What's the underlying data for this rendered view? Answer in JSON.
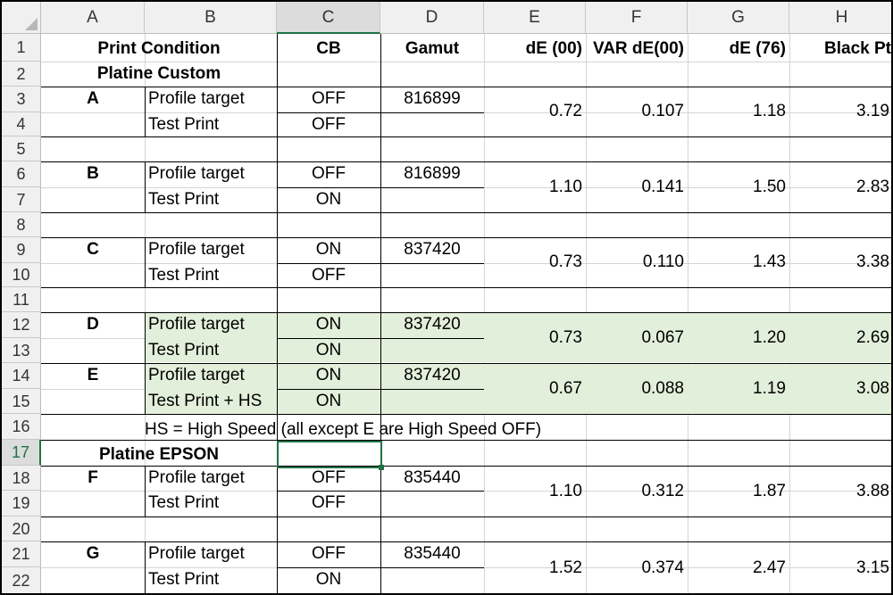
{
  "columns": [
    "A",
    "B",
    "C",
    "D",
    "E",
    "F",
    "G",
    "H"
  ],
  "rows": [
    "1",
    "2",
    "3",
    "4",
    "5",
    "6",
    "7",
    "8",
    "9",
    "10",
    "11",
    "12",
    "13",
    "14",
    "15",
    "16",
    "17",
    "18",
    "19",
    "20",
    "21",
    "22"
  ],
  "header": {
    "print_condition": "Print Condition",
    "cb": "CB",
    "gamut": "Gamut",
    "de00": "dE (00)",
    "var_de00": "VAR dE(00)",
    "de76": "dE (76)",
    "black_pt": "Black Pt"
  },
  "sections": {
    "platine_custom": "Platine Custom",
    "platine_epson": "Platine EPSON"
  },
  "note": "HS = High Speed (all except E are High Speed OFF)",
  "groups": [
    {
      "id": "A",
      "row1_label": "Profile target",
      "row2_label": "Test Print",
      "cb1": "OFF",
      "cb2": "OFF",
      "gamut": "816899",
      "de00": "0.72",
      "var_de00": "0.107",
      "de76": "1.18",
      "black_pt": "3.19"
    },
    {
      "id": "B",
      "row1_label": "Profile target",
      "row2_label": "Test Print",
      "cb1": "OFF",
      "cb2": "ON",
      "gamut": "816899",
      "de00": "1.10",
      "var_de00": "0.141",
      "de76": "1.50",
      "black_pt": "2.83"
    },
    {
      "id": "C",
      "row1_label": "Profile target",
      "row2_label": "Test Print",
      "cb1": "ON",
      "cb2": "OFF",
      "gamut": "837420",
      "de00": "0.73",
      "var_de00": "0.110",
      "de76": "1.43",
      "black_pt": "3.38"
    },
    {
      "id": "D",
      "row1_label": "Profile target",
      "row2_label": "Test Print",
      "cb1": "ON",
      "cb2": "ON",
      "gamut": "837420",
      "de00": "0.73",
      "var_de00": "0.067",
      "de76": "1.20",
      "black_pt": "2.69"
    },
    {
      "id": "E",
      "row1_label": "Profile target",
      "row2_label": "Test Print + HS",
      "cb1": "ON",
      "cb2": "ON",
      "gamut": "837420",
      "de00": "0.67",
      "var_de00": "0.088",
      "de76": "1.19",
      "black_pt": "3.08"
    },
    {
      "id": "F",
      "row1_label": "Profile target",
      "row2_label": "Test Print",
      "cb1": "OFF",
      "cb2": "OFF",
      "gamut": "835440",
      "de00": "1.10",
      "var_de00": "0.312",
      "de76": "1.87",
      "black_pt": "3.88"
    },
    {
      "id": "G",
      "row1_label": "Profile target",
      "row2_label": "Test Print",
      "cb1": "OFF",
      "cb2": "ON",
      "gamut": "835440",
      "de00": "1.52",
      "var_de00": "0.374",
      "de76": "2.47",
      "black_pt": "3.15"
    }
  ],
  "selected_cell": "C17",
  "colors": {
    "highlight": "#e2efda",
    "selection": "#1e7145"
  }
}
